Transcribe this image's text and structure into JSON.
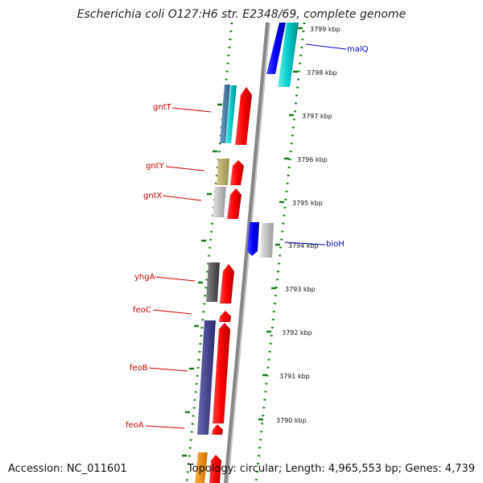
{
  "header": {
    "title": "Escherichia coli O127:H6 str. E2348/69, complete genome"
  },
  "footer": {
    "accession": "Accession: NC_011601",
    "genome_info": "Topology: circular; Length: 4,965,553 bp; Genes: 4,739"
  },
  "colors": {
    "forward_gene": "#ff0000",
    "reverse_gene": "#0000ff",
    "backbone": "#888888",
    "ring": "#228b22",
    "label_forward": "#cc0000",
    "label_reverse": "#0000cc"
  },
  "ticks": [
    {
      "label": "3799 kbp"
    },
    {
      "label": "3798 kbp"
    },
    {
      "label": "3797 kbp"
    },
    {
      "label": "3796 kbp"
    },
    {
      "label": "3795 kbp"
    },
    {
      "label": "3794 kbp"
    },
    {
      "label": "3793 kbp"
    },
    {
      "label": "3792 kbp"
    },
    {
      "label": "3791 kbp"
    },
    {
      "label": "3790 kbp"
    }
  ],
  "genes": [
    {
      "name": "malQ",
      "strand": "reverse"
    },
    {
      "name": "gntT",
      "strand": "forward"
    },
    {
      "name": "gntY",
      "strand": "forward"
    },
    {
      "name": "gntX",
      "strand": "forward"
    },
    {
      "name": "bioH",
      "strand": "reverse"
    },
    {
      "name": "yhgA",
      "strand": "forward"
    },
    {
      "name": "feoC",
      "strand": "forward"
    },
    {
      "name": "feoB",
      "strand": "forward"
    },
    {
      "name": "feoA",
      "strand": "forward"
    }
  ]
}
